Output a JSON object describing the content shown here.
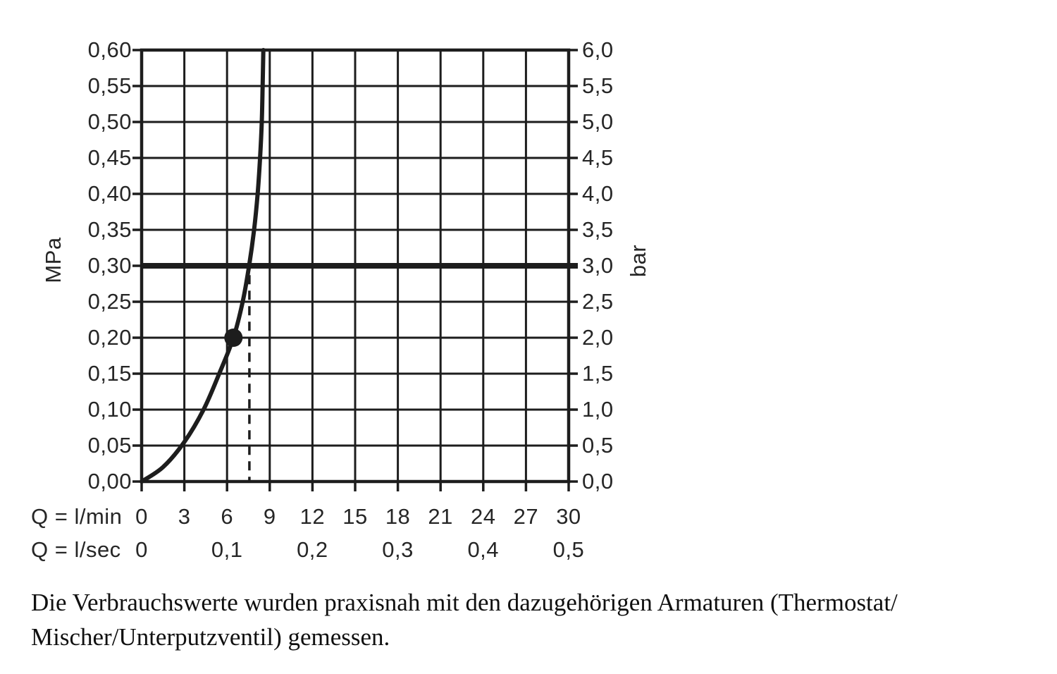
{
  "chart_data": {
    "type": "line",
    "title": "",
    "grid": true,
    "line_color": "#1d1d1d",
    "y_left": {
      "unit": "MPa",
      "min": 0,
      "max": 0.6,
      "step": 0.05,
      "tick_labels": [
        "0,60",
        "0,55",
        "0,50",
        "0,45",
        "0,40",
        "0,35",
        "0,30",
        "0,25",
        "0,20",
        "0,15",
        "0,10",
        "0,05",
        "0,00"
      ]
    },
    "y_right": {
      "unit": "bar",
      "min": 0,
      "max": 6,
      "step": 0.5,
      "tick_labels": [
        "6,0",
        "5,5",
        "5,0",
        "4,5",
        "4,0",
        "3,5",
        "3,0",
        "2,5",
        "2,0",
        "1,5",
        "1,0",
        "0,5",
        "0,0"
      ]
    },
    "x_lmin": {
      "label": "Q = l/min",
      "min": 0,
      "max": 30,
      "step": 3,
      "tick_labels": [
        "0",
        "3",
        "6",
        "9",
        "12",
        "15",
        "18",
        "21",
        "24",
        "27",
        "30"
      ]
    },
    "x_lsec": {
      "label": "Q = l/sec",
      "tick_labels": [
        "0",
        "0,1",
        "0,2",
        "0,3",
        "0,4",
        "0,5"
      ]
    },
    "curve_points_lmin_mpa": [
      [
        0,
        0
      ],
      [
        1.5,
        0.02
      ],
      [
        3,
        0.055
      ],
      [
        4.35,
        0.1
      ],
      [
        5.45,
        0.15
      ],
      [
        6.45,
        0.2
      ],
      [
        7.1,
        0.25
      ],
      [
        7.55,
        0.3
      ],
      [
        7.9,
        0.35
      ],
      [
        8.15,
        0.4
      ],
      [
        8.32,
        0.45
      ],
      [
        8.44,
        0.5
      ],
      [
        8.5,
        0.55
      ],
      [
        8.55,
        0.6
      ]
    ],
    "marker_point_lmin_mpa": [
      6.45,
      0.2
    ],
    "pressure_line_mpa": 0.3,
    "dashed_guide": {
      "q_lmin": 7.57,
      "from_mpa": 0,
      "to_mpa": 0.287
    }
  },
  "caption": {
    "line1": "Die Verbrauchswerte wurden praxisnah mit den dazugehörigen Armaturen (Thermostat/",
    "line2": "Mischer/Unterputzventil) gemessen."
  }
}
